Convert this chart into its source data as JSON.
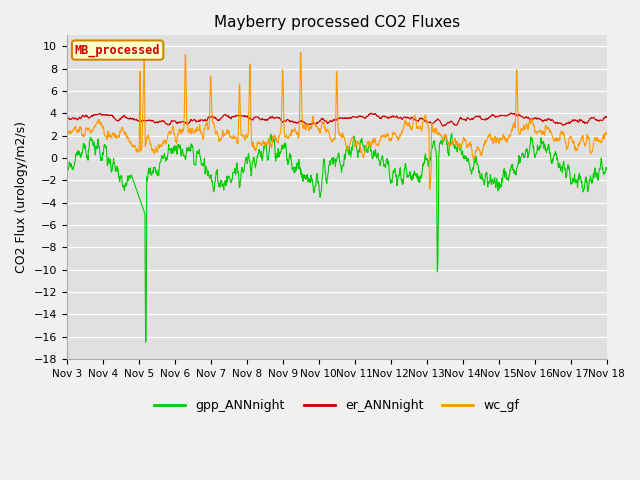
{
  "title": "Mayberry processed CO2 Fluxes",
  "ylabel": "CO2 Flux (urology/m2/s)",
  "xlim_days": [
    3,
    18
  ],
  "ylim": [
    -18,
    11
  ],
  "yticks": [
    10,
    8,
    6,
    4,
    2,
    0,
    -2,
    -4,
    -6,
    -8,
    -10,
    -12,
    -14,
    -16,
    -18
  ],
  "xtick_labels": [
    "Nov 3",
    "Nov 4",
    "Nov 5",
    "Nov 6",
    "Nov 7",
    "Nov 8",
    "Nov 9",
    "Nov 10",
    "Nov 11",
    "Nov 12",
    "Nov 13",
    "Nov 14",
    "Nov 15",
    "Nov 16",
    "Nov 17",
    "Nov 18"
  ],
  "legend_entries": [
    "gpp_ANNnight",
    "er_ANNnight",
    "wc_gf"
  ],
  "legend_colors": [
    "#00cc00",
    "#cc0000",
    "#ff9900"
  ],
  "box_label": "MB_processed",
  "box_facecolor": "#ffffcc",
  "box_edgecolor": "#cc8800",
  "box_textcolor": "#cc0000",
  "plot_bg_color": "#e0e0e0",
  "fig_bg_color": "#f0f0f0",
  "grid_color": "#ffffff",
  "title_fontsize": 11,
  "label_fontsize": 9,
  "tick_fontsize": 8,
  "line_width": 0.8,
  "gpp_color": "#00cc00",
  "er_color": "#cc0000",
  "wc_color": "#ff9900",
  "n_points": 1500,
  "seed": 7
}
